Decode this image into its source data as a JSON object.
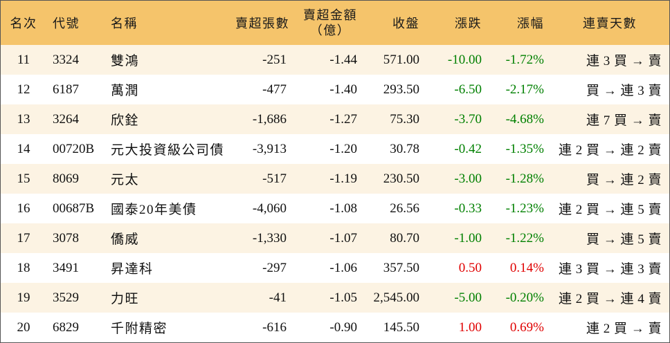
{
  "columns": {
    "rank": "名次",
    "code": "代號",
    "name": "名稱",
    "net_sell_lots": "賣超張數",
    "net_sell_amount": "賣超金額",
    "net_sell_amount_unit": "（億）",
    "close": "收盤",
    "change": "漲跌",
    "change_pct": "漲幅",
    "streak": "連賣天數"
  },
  "colors": {
    "header_bg": "#F5C46B",
    "row_alt_bg": "#FCF3E3",
    "down": "#008000",
    "up": "#E00000"
  },
  "rows": [
    {
      "rank": "11",
      "code": "3324",
      "name": "雙鴻",
      "lots": "-251",
      "amount": "-1.44",
      "close": "571.00",
      "change": "-10.00",
      "pct": "-1.72%",
      "streak": "連 3 買 → 賣"
    },
    {
      "rank": "12",
      "code": "6187",
      "name": "萬潤",
      "lots": "-477",
      "amount": "-1.40",
      "close": "293.50",
      "change": "-6.50",
      "pct": "-2.17%",
      "streak": "買 → 連 3 賣"
    },
    {
      "rank": "13",
      "code": "3264",
      "name": "欣銓",
      "lots": "-1,686",
      "amount": "-1.27",
      "close": "75.30",
      "change": "-3.70",
      "pct": "-4.68%",
      "streak": "連 7 買 → 賣"
    },
    {
      "rank": "14",
      "code": "00720B",
      "name": "元大投資級公司債",
      "lots": "-3,913",
      "amount": "-1.20",
      "close": "30.78",
      "change": "-0.42",
      "pct": "-1.35%",
      "streak": "連 2 買 → 連 2 賣"
    },
    {
      "rank": "15",
      "code": "8069",
      "name": "元太",
      "lots": "-517",
      "amount": "-1.19",
      "close": "230.50",
      "change": "-3.00",
      "pct": "-1.28%",
      "streak": "買 → 連 2 賣"
    },
    {
      "rank": "16",
      "code": "00687B",
      "name": "國泰20年美債",
      "lots": "-4,060",
      "amount": "-1.08",
      "close": "26.56",
      "change": "-0.33",
      "pct": "-1.23%",
      "streak": "連 2 買 → 連 5 賣"
    },
    {
      "rank": "17",
      "code": "3078",
      "name": "僑威",
      "lots": "-1,330",
      "amount": "-1.07",
      "close": "80.70",
      "change": "-1.00",
      "pct": "-1.22%",
      "streak": "買 → 連 5 賣"
    },
    {
      "rank": "18",
      "code": "3491",
      "name": "昇達科",
      "lots": "-297",
      "amount": "-1.06",
      "close": "357.50",
      "change": "0.50",
      "pct": "0.14%",
      "streak": "連 3 買 → 連 3 賣"
    },
    {
      "rank": "19",
      "code": "3529",
      "name": "力旺",
      "lots": "-41",
      "amount": "-1.05",
      "close": "2,545.00",
      "change": "-5.00",
      "pct": "-0.20%",
      "streak": "連 2 買 → 連 4 賣"
    },
    {
      "rank": "20",
      "code": "6829",
      "name": "千附精密",
      "lots": "-616",
      "amount": "-0.90",
      "close": "145.50",
      "change": "1.00",
      "pct": "0.69%",
      "streak": "連 2 買 → 賣"
    }
  ]
}
